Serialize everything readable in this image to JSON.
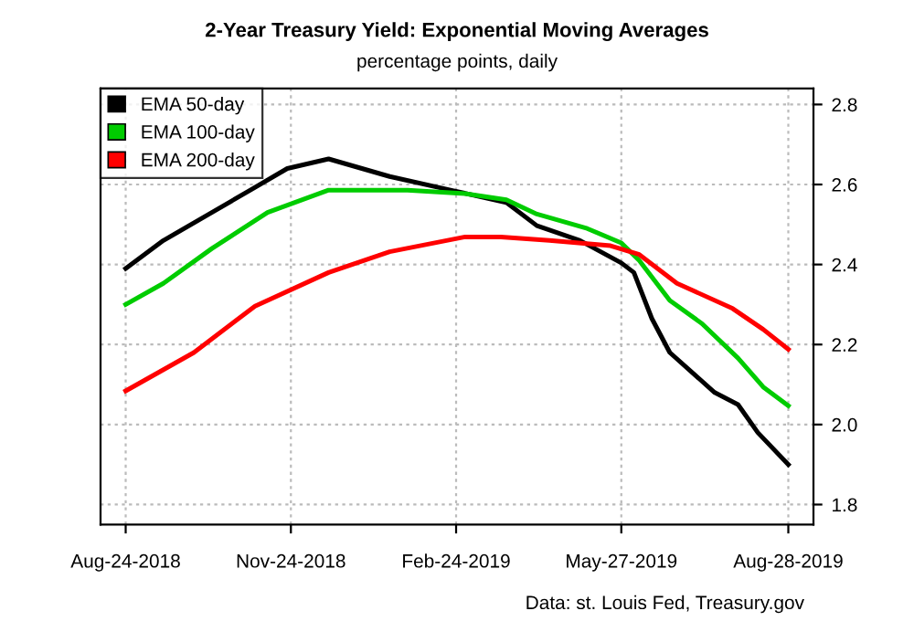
{
  "chart_data": {
    "type": "line",
    "title": "2-Year Treasury Yield: Exponential Moving Averages",
    "subtitle": "percentage points, daily",
    "annotations": [
      "Data: st. Louis Fed, Treasury.gov"
    ],
    "xlim": [
      "2018-08-10",
      "2019-09-11"
    ],
    "xticks": [
      {
        "value": "2018-08-24",
        "label": "Aug-24-2018"
      },
      {
        "value": "2018-11-24",
        "label": "Nov-24-2018"
      },
      {
        "value": "2019-02-24",
        "label": "Feb-24-2019"
      },
      {
        "value": "2019-05-27",
        "label": "May-27-2019"
      },
      {
        "value": "2019-08-28",
        "label": "Aug-28-2019"
      }
    ],
    "ylim": [
      1.75,
      2.84
    ],
    "yticks": [
      1.8,
      {
        "value": 2.0,
        "label": "2.0"
      },
      2.2,
      2.4,
      2.6,
      2.8
    ],
    "grid": true,
    "legend": "top left",
    "series": [
      {
        "name": "EMA 50-day",
        "color": "#000000",
        "x": [
          "2018-08-24",
          "2018-09-14",
          "2018-10-11",
          "2018-11-01",
          "2018-11-22",
          "2018-12-15",
          "2019-01-18",
          "2019-02-22",
          "2019-03-24",
          "2019-04-10",
          "2019-05-04",
          "2019-05-27",
          "2019-06-03",
          "2019-06-13",
          "2019-06-23",
          "2019-07-18",
          "2019-07-31",
          "2019-08-11",
          "2019-08-28"
        ],
        "values": [
          2.39,
          2.46,
          2.53,
          2.585,
          2.64,
          2.664,
          2.62,
          2.585,
          2.555,
          2.497,
          2.46,
          2.404,
          2.38,
          2.265,
          2.18,
          2.08,
          2.05,
          1.98,
          1.9
        ]
      },
      {
        "name": "EMA 100-day",
        "color": "#00cc00",
        "x": [
          "2018-08-24",
          "2018-09-14",
          "2018-10-11",
          "2018-11-11",
          "2018-12-15",
          "2019-01-28",
          "2019-03-01",
          "2019-03-24",
          "2019-04-10",
          "2019-05-08",
          "2019-05-27",
          "2019-06-06",
          "2019-06-23",
          "2019-07-11",
          "2019-07-31",
          "2019-08-14",
          "2019-08-28"
        ],
        "values": [
          2.3,
          2.353,
          2.44,
          2.53,
          2.586,
          2.586,
          2.577,
          2.562,
          2.526,
          2.49,
          2.454,
          2.41,
          2.31,
          2.252,
          2.166,
          2.094,
          2.047
        ]
      },
      {
        "name": "EMA 200-day",
        "color": "#ff0000",
        "x": [
          "2018-08-24",
          "2018-10-01",
          "2018-11-04",
          "2018-12-15",
          "2019-01-18",
          "2019-03-01",
          "2019-03-21",
          "2019-04-17",
          "2019-05-21",
          "2019-06-06",
          "2019-06-27",
          "2019-07-28",
          "2019-08-14",
          "2019-08-28"
        ],
        "values": [
          2.084,
          2.18,
          2.296,
          2.38,
          2.432,
          2.469,
          2.469,
          2.46,
          2.447,
          2.425,
          2.353,
          2.29,
          2.238,
          2.188
        ]
      }
    ]
  }
}
